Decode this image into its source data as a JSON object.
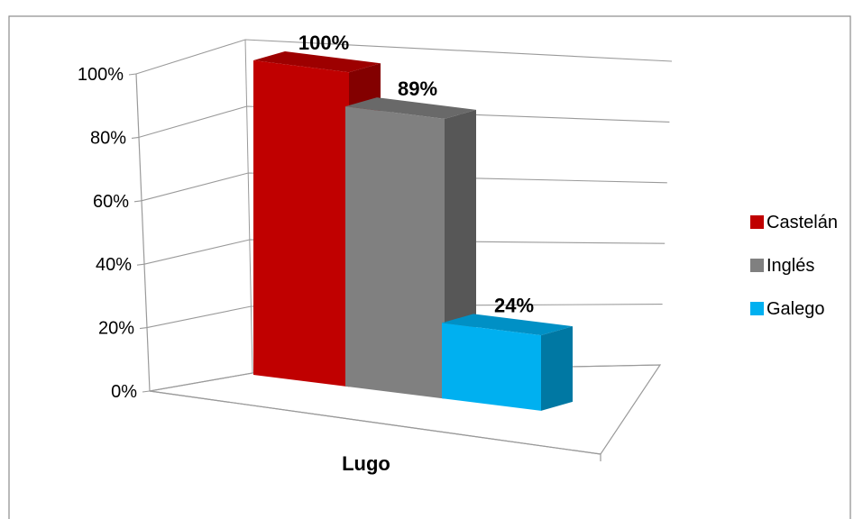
{
  "chart_data": {
    "type": "bar",
    "title": "",
    "xlabel": "",
    "ylabel": "",
    "categories": [
      "Lugo"
    ],
    "series": [
      {
        "name": "Castelán",
        "values": [
          100
        ],
        "label": "100%",
        "color": "#C00000"
      },
      {
        "name": "Inglés",
        "values": [
          89
        ],
        "label": "89%",
        "color": "#808080"
      },
      {
        "name": "Galego",
        "values": [
          24
        ],
        "label": "24%",
        "color": "#00B0F0"
      }
    ],
    "ylim": [
      0,
      100
    ],
    "y_ticks": [
      0,
      20,
      40,
      60,
      80,
      100
    ],
    "y_tick_labels": [
      "0%",
      "20%",
      "40%",
      "60%",
      "80%",
      "100%"
    ],
    "grid": true,
    "style": "3d-columns",
    "legend_position": "right"
  }
}
